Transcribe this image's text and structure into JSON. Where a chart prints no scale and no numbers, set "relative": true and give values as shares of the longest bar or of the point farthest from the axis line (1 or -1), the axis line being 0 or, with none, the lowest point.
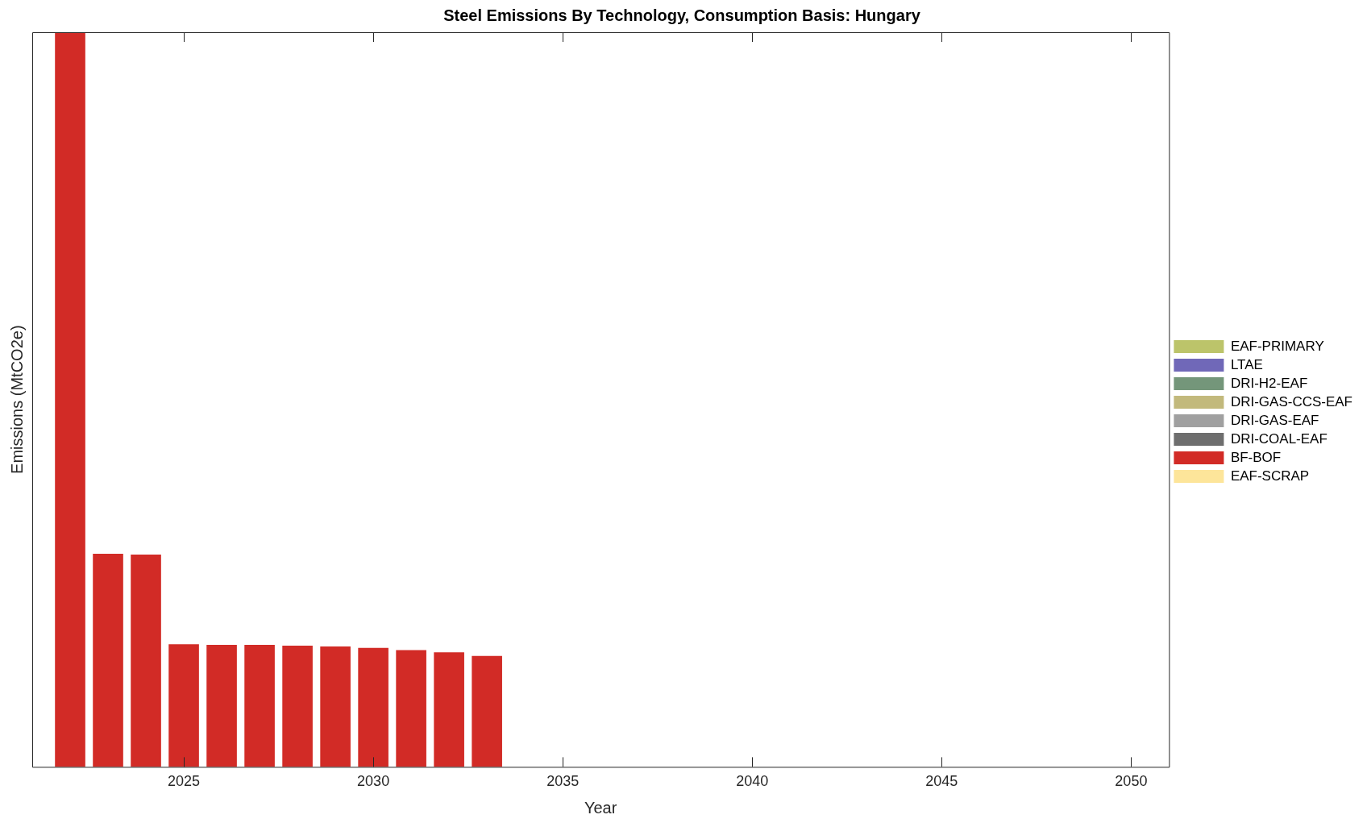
{
  "chart_data": {
    "type": "bar",
    "title": "Steel Emissions By Technology, Consumption Basis: Hungary",
    "xlabel": "Year",
    "ylabel": "Emissions (MtCO2e)",
    "relative": true,
    "stacked": true,
    "x": [
      2022,
      2023,
      2024,
      2025,
      2026,
      2027,
      2028,
      2029,
      2030,
      2031,
      2032,
      2033
    ],
    "xlim": [
      2021,
      2051
    ],
    "xticks": [
      2025,
      2030,
      2035,
      2040,
      2045,
      2050
    ],
    "grid": false,
    "legend": "right",
    "series": [
      {
        "name": "EAF-PRIMARY",
        "color": "#bcc46a",
        "values": [
          0,
          0,
          0,
          0,
          0,
          0,
          0,
          0,
          0,
          0,
          0,
          0
        ]
      },
      {
        "name": "LTAE",
        "color": "#7068b8",
        "values": [
          0,
          0,
          0,
          0,
          0,
          0,
          0,
          0,
          0,
          0,
          0,
          0
        ]
      },
      {
        "name": "DRI-H2-EAF",
        "color": "#74967a",
        "values": [
          0,
          0,
          0,
          0,
          0,
          0,
          0,
          0,
          0,
          0,
          0,
          0
        ]
      },
      {
        "name": "DRI-GAS-CCS-EAF",
        "color": "#c2b97c",
        "values": [
          0,
          0,
          0,
          0,
          0,
          0,
          0,
          0,
          0,
          0,
          0,
          0
        ]
      },
      {
        "name": "DRI-GAS-EAF",
        "color": "#a0a0a0",
        "values": [
          0,
          0,
          0,
          0,
          0,
          0,
          0,
          0,
          0,
          0,
          0,
          0
        ]
      },
      {
        "name": "DRI-COAL-EAF",
        "color": "#6e6e6e",
        "values": [
          0,
          0,
          0,
          0,
          0,
          0,
          0,
          0,
          0,
          0,
          0,
          0
        ]
      },
      {
        "name": "BF-BOF",
        "color": "#d22b26",
        "values": [
          1,
          0.29,
          0.289,
          0.167,
          0.166,
          0.166,
          0.165,
          0.164,
          0.162,
          0.159,
          0.156,
          0.151
        ]
      },
      {
        "name": "EAF-SCRAP",
        "color": "#fde59a",
        "values": [
          0,
          0,
          0,
          0,
          0,
          0,
          0,
          0,
          0,
          0,
          0,
          0
        ]
      }
    ]
  }
}
